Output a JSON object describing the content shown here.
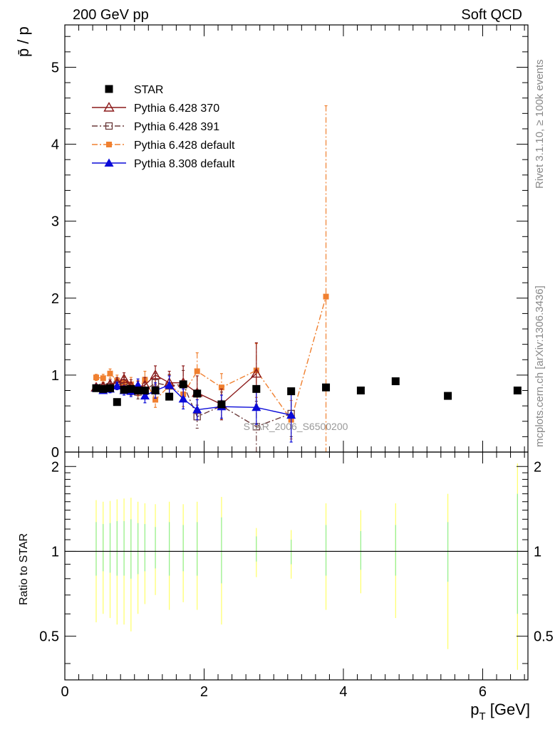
{
  "header": {
    "left": "200 GeV pp",
    "right": "Soft QCD"
  },
  "side": {
    "rivet": "Rivet 3.1.10, ≥ 100k events",
    "site": "mcplots.cern.ch [arXiv:1306.3436]"
  },
  "watermark": "STAR_2006_S6500200",
  "colors": {
    "star": "#000000",
    "p370": "#8b1a1a",
    "p391": "#6b3a3a",
    "p6def": "#f08030",
    "p8def": "#0a0ad8",
    "band_inner": "#90ee90",
    "band_outer": "#ffff66"
  },
  "chart_data": {
    "type": "scatter",
    "xlabel": "p_T [GeV]",
    "ylabel": "p̄ / p",
    "ratio_ylabel": "Ratio to STAR",
    "xlim": [
      0,
      6.65
    ],
    "ylim": [
      0,
      5.55
    ],
    "ratio_ylim": [
      0.35,
      2.25
    ],
    "x_ticks": [
      0,
      2,
      4,
      6
    ],
    "y_ticks": [
      0,
      1,
      2,
      3,
      4,
      5
    ],
    "ratio_ticks": [
      0.5,
      1,
      2
    ],
    "legend_position": "top-left",
    "series": [
      {
        "key": "star",
        "name": "STAR",
        "marker": "filled-square",
        "line": "none",
        "points": [
          {
            "x": 0.45,
            "y": 0.83
          },
          {
            "x": 0.55,
            "y": 0.82
          },
          {
            "x": 0.65,
            "y": 0.83
          },
          {
            "x": 0.75,
            "y": 0.65
          },
          {
            "x": 0.85,
            "y": 0.81
          },
          {
            "x": 0.95,
            "y": 0.82
          },
          {
            "x": 1.05,
            "y": 0.8
          },
          {
            "x": 1.15,
            "y": 0.8
          },
          {
            "x": 1.3,
            "y": 0.8
          },
          {
            "x": 1.5,
            "y": 0.72
          },
          {
            "x": 1.7,
            "y": 0.88
          },
          {
            "x": 1.9,
            "y": 0.76
          },
          {
            "x": 2.25,
            "y": 0.62
          },
          {
            "x": 2.75,
            "y": 0.82
          },
          {
            "x": 3.25,
            "y": 0.79
          },
          {
            "x": 3.75,
            "y": 0.84
          },
          {
            "x": 4.25,
            "y": 0.8
          },
          {
            "x": 4.75,
            "y": 0.92
          },
          {
            "x": 5.5,
            "y": 0.73
          },
          {
            "x": 6.5,
            "y": 0.8
          }
        ]
      },
      {
        "key": "p370",
        "name": "Pythia 6.428 370",
        "marker": "open-triangle",
        "line": "solid",
        "points": [
          {
            "x": 0.45,
            "y": 0.84,
            "e": 0.04
          },
          {
            "x": 0.55,
            "y": 0.85,
            "e": 0.05
          },
          {
            "x": 0.65,
            "y": 0.88,
            "e": 0.06
          },
          {
            "x": 0.75,
            "y": 0.9,
            "e": 0.07
          },
          {
            "x": 0.85,
            "y": 0.95,
            "e": 0.08
          },
          {
            "x": 0.95,
            "y": 0.86,
            "e": 0.08
          },
          {
            "x": 1.05,
            "y": 0.83,
            "e": 0.09
          },
          {
            "x": 1.15,
            "y": 0.87,
            "e": 0.1
          },
          {
            "x": 1.3,
            "y": 1.0,
            "e": 0.12
          },
          {
            "x": 1.5,
            "y": 0.9,
            "e": 0.15
          },
          {
            "x": 1.7,
            "y": 0.9,
            "e": 0.22
          },
          {
            "x": 1.9,
            "y": 0.77,
            "e": 0.22
          },
          {
            "x": 2.25,
            "y": 0.62,
            "e": 0.2
          },
          {
            "x": 2.75,
            "y": 1.02,
            "e": 0.4
          }
        ]
      },
      {
        "key": "p391",
        "name": "Pythia 6.428 391",
        "marker": "open-square",
        "line": "dash-dot",
        "points": [
          {
            "x": 0.45,
            "y": 0.83,
            "e": 0.04
          },
          {
            "x": 0.55,
            "y": 0.84,
            "e": 0.05
          },
          {
            "x": 0.65,
            "y": 0.85,
            "e": 0.06
          },
          {
            "x": 0.75,
            "y": 0.87,
            "e": 0.06
          },
          {
            "x": 0.85,
            "y": 0.9,
            "e": 0.07
          },
          {
            "x": 0.95,
            "y": 0.82,
            "e": 0.08
          },
          {
            "x": 1.05,
            "y": 0.78,
            "e": 0.09
          },
          {
            "x": 1.15,
            "y": 0.8,
            "e": 0.1
          },
          {
            "x": 1.3,
            "y": 0.9,
            "e": 0.12
          },
          {
            "x": 1.5,
            "y": 0.86,
            "e": 0.15
          },
          {
            "x": 1.7,
            "y": 0.88,
            "e": 0.18
          },
          {
            "x": 1.9,
            "y": 0.46,
            "e": 0.15
          },
          {
            "x": 2.25,
            "y": 0.6,
            "e": 0.18
          },
          {
            "x": 2.75,
            "y": 0.33,
            "e": 0.33
          },
          {
            "x": 3.25,
            "y": 0.5,
            "e": 0.3
          }
        ]
      },
      {
        "key": "p6def",
        "name": "Pythia 6.428 default",
        "marker": "filled-square-small",
        "line": "dash-dot",
        "points": [
          {
            "x": 0.45,
            "y": 0.97,
            "e": 0.04
          },
          {
            "x": 0.55,
            "y": 0.96,
            "e": 0.05
          },
          {
            "x": 0.65,
            "y": 1.02,
            "e": 0.06
          },
          {
            "x": 0.75,
            "y": 0.93,
            "e": 0.07
          },
          {
            "x": 0.85,
            "y": 0.9,
            "e": 0.08
          },
          {
            "x": 0.95,
            "y": 0.88,
            "e": 0.09
          },
          {
            "x": 1.05,
            "y": 0.83,
            "e": 0.1
          },
          {
            "x": 1.15,
            "y": 0.94,
            "e": 0.11
          },
          {
            "x": 1.3,
            "y": 0.68,
            "e": 0.1
          },
          {
            "x": 1.5,
            "y": 0.86,
            "e": 0.14
          },
          {
            "x": 1.7,
            "y": 0.75,
            "e": 0.16
          },
          {
            "x": 1.9,
            "y": 1.05,
            "e": 0.24
          },
          {
            "x": 2.25,
            "y": 0.84,
            "e": 0.18
          },
          {
            "x": 2.75,
            "y": 1.06,
            "e": 0.35
          },
          {
            "x": 3.25,
            "y": 0.42,
            "e": 0.25
          },
          {
            "x": 3.75,
            "y": 2.02,
            "e": 2.48
          }
        ]
      },
      {
        "key": "p8def",
        "name": "Pythia 8.308 default",
        "marker": "filled-triangle",
        "line": "solid",
        "points": [
          {
            "x": 0.45,
            "y": 0.83,
            "e": 0.04
          },
          {
            "x": 0.55,
            "y": 0.8,
            "e": 0.04
          },
          {
            "x": 0.65,
            "y": 0.82,
            "e": 0.05
          },
          {
            "x": 0.75,
            "y": 0.86,
            "e": 0.05
          },
          {
            "x": 0.85,
            "y": 0.8,
            "e": 0.06
          },
          {
            "x": 0.95,
            "y": 0.79,
            "e": 0.07
          },
          {
            "x": 1.05,
            "y": 0.87,
            "e": 0.08
          },
          {
            "x": 1.15,
            "y": 0.73,
            "e": 0.09
          },
          {
            "x": 1.3,
            "y": 0.8,
            "e": 0.1
          },
          {
            "x": 1.5,
            "y": 0.87,
            "e": 0.12
          },
          {
            "x": 1.7,
            "y": 0.69,
            "e": 0.13
          },
          {
            "x": 1.9,
            "y": 0.55,
            "e": 0.13
          },
          {
            "x": 2.25,
            "y": 0.59,
            "e": 0.15
          },
          {
            "x": 2.75,
            "y": 0.58,
            "e": 0.22
          },
          {
            "x": 3.25,
            "y": 0.48,
            "e": 0.35
          }
        ]
      }
    ],
    "ratio_bands": [
      {
        "x": 0.45,
        "inner": [
          0.82,
          1.27
        ],
        "outer": [
          0.56,
          1.52
        ]
      },
      {
        "x": 0.55,
        "inner": [
          0.85,
          1.25
        ],
        "outer": [
          0.6,
          1.5
        ]
      },
      {
        "x": 0.65,
        "inner": [
          0.84,
          1.26
        ],
        "outer": [
          0.58,
          1.51
        ]
      },
      {
        "x": 0.75,
        "inner": [
          0.82,
          1.28
        ],
        "outer": [
          0.55,
          1.53
        ]
      },
      {
        "x": 0.85,
        "inner": [
          0.82,
          1.28
        ],
        "outer": [
          0.55,
          1.54
        ]
      },
      {
        "x": 0.95,
        "inner": [
          0.8,
          1.3
        ],
        "outer": [
          0.52,
          1.55
        ]
      },
      {
        "x": 1.05,
        "inner": [
          0.83,
          1.26
        ],
        "outer": [
          0.6,
          1.5
        ]
      },
      {
        "x": 1.15,
        "inner": [
          0.85,
          1.25
        ],
        "outer": [
          0.65,
          1.48
        ]
      },
      {
        "x": 1.3,
        "inner": [
          0.87,
          1.22
        ],
        "outer": [
          0.7,
          1.47
        ]
      },
      {
        "x": 1.5,
        "inner": [
          0.82,
          1.27
        ],
        "outer": [
          0.62,
          1.5
        ]
      },
      {
        "x": 1.7,
        "inner": [
          0.85,
          1.24
        ],
        "outer": [
          0.66,
          1.47
        ]
      },
      {
        "x": 1.9,
        "inner": [
          0.82,
          1.27
        ],
        "outer": [
          0.62,
          1.5
        ]
      },
      {
        "x": 2.25,
        "inner": [
          0.77,
          1.32
        ],
        "outer": [
          0.55,
          1.56
        ]
      },
      {
        "x": 2.75,
        "inner": [
          0.92,
          1.13
        ],
        "outer": [
          0.81,
          1.21
        ]
      },
      {
        "x": 3.25,
        "inner": [
          0.9,
          1.1
        ],
        "outer": [
          0.8,
          1.19
        ]
      },
      {
        "x": 3.75,
        "inner": [
          0.82,
          1.24
        ],
        "outer": [
          0.62,
          1.48
        ]
      },
      {
        "x": 4.25,
        "inner": [
          0.86,
          1.18
        ],
        "outer": [
          0.71,
          1.4
        ]
      },
      {
        "x": 4.75,
        "inner": [
          0.82,
          1.24
        ],
        "outer": [
          0.58,
          1.48
        ]
      },
      {
        "x": 5.5,
        "inner": [
          0.78,
          1.27
        ],
        "outer": [
          0.45,
          1.6
        ]
      },
      {
        "x": 6.5,
        "inner": [
          0.6,
          1.6
        ],
        "outer": [
          0.38,
          2.05
        ]
      }
    ]
  }
}
